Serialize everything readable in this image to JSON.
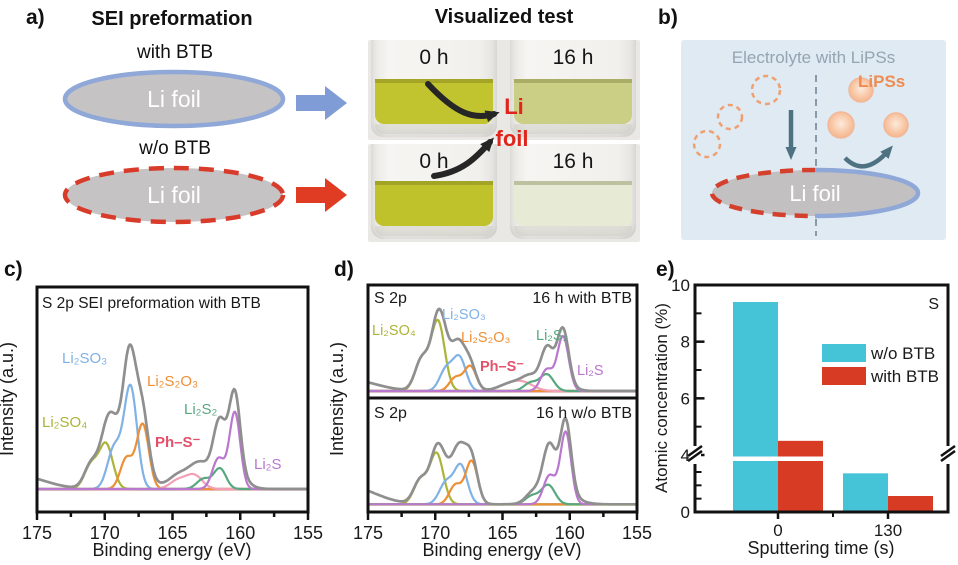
{
  "figure": {
    "panel_letters": {
      "a": "a)",
      "b": "b)",
      "c": "c)",
      "d": "d)",
      "e": "e)"
    }
  },
  "panel_a": {
    "title": "SEI preformation",
    "with_label": "with BTB",
    "wo_label": "w/o BTB",
    "foil_text": "Li foil",
    "arrow_with_color": "#7f9cd6",
    "arrow_wo_color": "#e03c23",
    "ellipse_fill": "#c5c3c3",
    "ellipse_with_stroke": "#8fa8d8",
    "ellipse_wo_stroke": "#d93b2b"
  },
  "visualized": {
    "title": "Visualized test",
    "annotation": {
      "line1": "Li",
      "line2": "foil",
      "color": "#e0261c"
    },
    "rows": [
      {
        "vials": [
          {
            "time": "0 h",
            "liquid": "#c2c42f"
          },
          {
            "time": "16 h",
            "liquid": "#cbcf86"
          }
        ]
      },
      {
        "vials": [
          {
            "time": "0 h",
            "liquid": "#c0c22c"
          },
          {
            "time": "16 h",
            "liquid": "#e7ead5"
          }
        ]
      }
    ]
  },
  "panel_b": {
    "title": "Electrolyte with LiPSs",
    "title_color": "#94a4b1",
    "lipss_label": "LiPSs",
    "lipss_color": "#ee8c51",
    "foil_text": "Li foil",
    "bg": "#dfeaf2",
    "divider_color": "#8a9aa8",
    "arrow_color": "#4f7282",
    "dashed_circle_color": "#f0a070",
    "foil_dashed_stroke": "#d4402c",
    "foil_solid_stroke": "#8fa8d8",
    "foil_fill": "#c2c0c0"
  },
  "chart_data": {
    "spectra": [
      {
        "panel": "c",
        "type": "line",
        "title": "S 2p SEI preformation with BTB",
        "xlabel": "Binding energy (eV)",
        "ylabel": "Intensity (a.u.)",
        "x_range": [
          175,
          155
        ],
        "x_ticks": [
          175,
          170,
          165,
          160,
          155
        ],
        "envelope_color": "#8f8f8f",
        "baseline_color": "#f28fa5",
        "background": [
          [
            176.5,
            0.08,
            2.0
          ]
        ],
        "env_extra": [
          [
            160.8,
            0.13,
            0.9
          ],
          [
            167.9,
            0.04,
            1.6
          ],
          [
            163.4,
            0.04,
            1.5
          ]
        ],
        "components": [
          {
            "species": "Li₂SO₄",
            "color": "#abb437",
            "peaks": [
              [
                169.9,
                0.26,
                0.5
              ],
              [
                171.0,
                0.14,
                0.5
              ]
            ]
          },
          {
            "species": "Li₂SO₃",
            "color": "#7fb2e5",
            "peaks": [
              [
                168.1,
                0.6,
                0.48
              ],
              [
                169.3,
                0.24,
                0.5
              ]
            ]
          },
          {
            "species": "Li₂S₂O₃",
            "color": "#ee8f35",
            "peaks": [
              [
                167.2,
                0.38,
                0.45
              ],
              [
                168.4,
                0.18,
                0.45
              ]
            ]
          },
          {
            "species": "Ph–S⁻",
            "color": "#f2a0b5",
            "peaks": [
              [
                163.4,
                0.08,
                0.6
              ],
              [
                164.6,
                0.05,
                0.6
              ]
            ]
          },
          {
            "species": "Li₂S₂",
            "color": "#57a87e",
            "peaks": [
              [
                161.5,
                0.12,
                0.45
              ],
              [
                162.7,
                0.06,
                0.5
              ]
            ]
          },
          {
            "species": "Li₂S",
            "color": "#ba77ce",
            "peaks": [
              [
                160.4,
                0.45,
                0.4
              ],
              [
                161.6,
                0.18,
                0.45
              ]
            ]
          }
        ],
        "labels": [
          {
            "text": "Li₂SO₃",
            "color": "#7fb2e5"
          },
          {
            "text": "Li₂SO₄",
            "color": "#abb437"
          },
          {
            "text": "Li₂S₂O₃",
            "color": "#ee8f35"
          },
          {
            "text": "Li₂S₂",
            "color": "#57a87e"
          },
          {
            "text": "Ph–S⁻",
            "color": "#e4506a"
          },
          {
            "text": "Li₂S",
            "color": "#ba77ce"
          }
        ]
      },
      {
        "panel": "d-top",
        "type": "line",
        "corner_left": "S 2p",
        "title": "16 h with BTB",
        "xlabel": "Binding energy (eV)",
        "ylabel": "Intensity (a.u.)",
        "x_range": [
          175,
          155
        ],
        "x_ticks": [
          175,
          170,
          165,
          160,
          155
        ],
        "envelope_color": "#8f8f8f",
        "baseline_color": "#f2a0b5",
        "background": [
          [
            176.5,
            0.07,
            2.0
          ]
        ],
        "env_extra": [
          [
            160.9,
            0.05,
            0.9
          ]
        ],
        "components": [
          {
            "species": "Li₂SO₄",
            "color": "#abb437",
            "peaks": [
              [
                169.8,
                0.42,
                0.5
              ],
              [
                171.0,
                0.19,
                0.5
              ]
            ]
          },
          {
            "species": "Li₂SO₃",
            "color": "#7fb2e5",
            "peaks": [
              [
                168.2,
                0.2,
                0.48
              ],
              [
                169.2,
                0.13,
                0.48
              ]
            ]
          },
          {
            "species": "Li₂S₂O₃",
            "color": "#ee8f35",
            "peaks": [
              [
                167.4,
                0.15,
                0.45
              ],
              [
                168.5,
                0.08,
                0.45
              ]
            ]
          },
          {
            "species": "Ph–S⁻",
            "color": "#f2a0b5",
            "peaks": [
              [
                163.5,
                0.05,
                0.8
              ],
              [
                164.7,
                0.03,
                0.8
              ]
            ]
          },
          {
            "species": "Li₂S₂",
            "color": "#57a87e",
            "peaks": [
              [
                161.7,
                0.1,
                0.5
              ],
              [
                162.9,
                0.05,
                0.5
              ]
            ]
          },
          {
            "species": "Li₂S",
            "color": "#ba77ce",
            "peaks": [
              [
                160.5,
                0.33,
                0.42
              ],
              [
                161.7,
                0.13,
                0.45
              ]
            ]
          }
        ],
        "labels": [
          {
            "text": "Li₂SO₄",
            "color": "#abb437"
          },
          {
            "text": "Li₂SO₃",
            "color": "#7fb2e5"
          },
          {
            "text": "Li₂S₂O₃",
            "color": "#ee8f35"
          },
          {
            "text": "Ph–S⁻",
            "color": "#e4506a"
          },
          {
            "text": "Li₂S₂",
            "color": "#57a87e"
          },
          {
            "text": "Li₂S",
            "color": "#ba77ce"
          }
        ]
      },
      {
        "panel": "d-bottom",
        "type": "line",
        "corner_left": "S 2p",
        "title": "16 h w/o BTB",
        "xlabel": "Binding energy (eV)",
        "ylabel": "Intensity (a.u.)",
        "x_range": [
          175,
          155
        ],
        "x_ticks": [
          175,
          170,
          165,
          160,
          155
        ],
        "envelope_color": "#8f8f8f",
        "baseline_color": "#c9ca5f",
        "background": [
          [
            176.5,
            0.15,
            2.0
          ]
        ],
        "env_extra": [
          [
            160.5,
            0.08,
            1.0
          ],
          [
            161.6,
            0.06,
            1.0
          ]
        ],
        "components": [
          {
            "species": "Li₂SO₄",
            "color": "#abb437",
            "peaks": [
              [
                169.9,
                0.42,
                0.5
              ],
              [
                171.1,
                0.2,
                0.5
              ]
            ]
          },
          {
            "species": "Li₂SO₃",
            "color": "#7fb2e5",
            "peaks": [
              [
                168.1,
                0.32,
                0.48
              ],
              [
                169.2,
                0.18,
                0.5
              ]
            ]
          },
          {
            "species": "Li₂S₂O₃",
            "color": "#ee8f35",
            "peaks": [
              [
                167.3,
                0.36,
                0.45
              ],
              [
                168.5,
                0.16,
                0.45
              ]
            ]
          },
          {
            "species": "Li₂S₂",
            "color": "#57a87e",
            "peaks": [
              [
                161.6,
                0.16,
                0.5
              ],
              [
                162.8,
                0.07,
                0.5
              ]
            ]
          },
          {
            "species": "Li₂S",
            "color": "#ba77ce",
            "peaks": [
              [
                160.3,
                0.6,
                0.4
              ],
              [
                161.5,
                0.24,
                0.45
              ]
            ]
          }
        ],
        "labels": []
      }
    ],
    "bars": {
      "type": "bar",
      "corner_label": "S",
      "xlabel": "Sputtering time (s)",
      "ylabel": "Atomic concentration (%)",
      "categories": [
        "0",
        "130"
      ],
      "series": [
        {
          "name": "w/o BTB",
          "color": "#45c4d8",
          "values": [
            9.4,
            2.9
          ]
        },
        {
          "name": "with BTB",
          "color": "#d83b23",
          "values": [
            4.5,
            1.2
          ]
        }
      ],
      "ylim": [
        0,
        10
      ],
      "y_ticks_labeled": [
        0,
        4,
        6,
        8,
        10
      ],
      "y_ticks_minor": [
        1,
        2,
        3,
        5,
        7,
        9
      ],
      "axis_break_at": 4,
      "legend_position": "upper-right"
    }
  }
}
